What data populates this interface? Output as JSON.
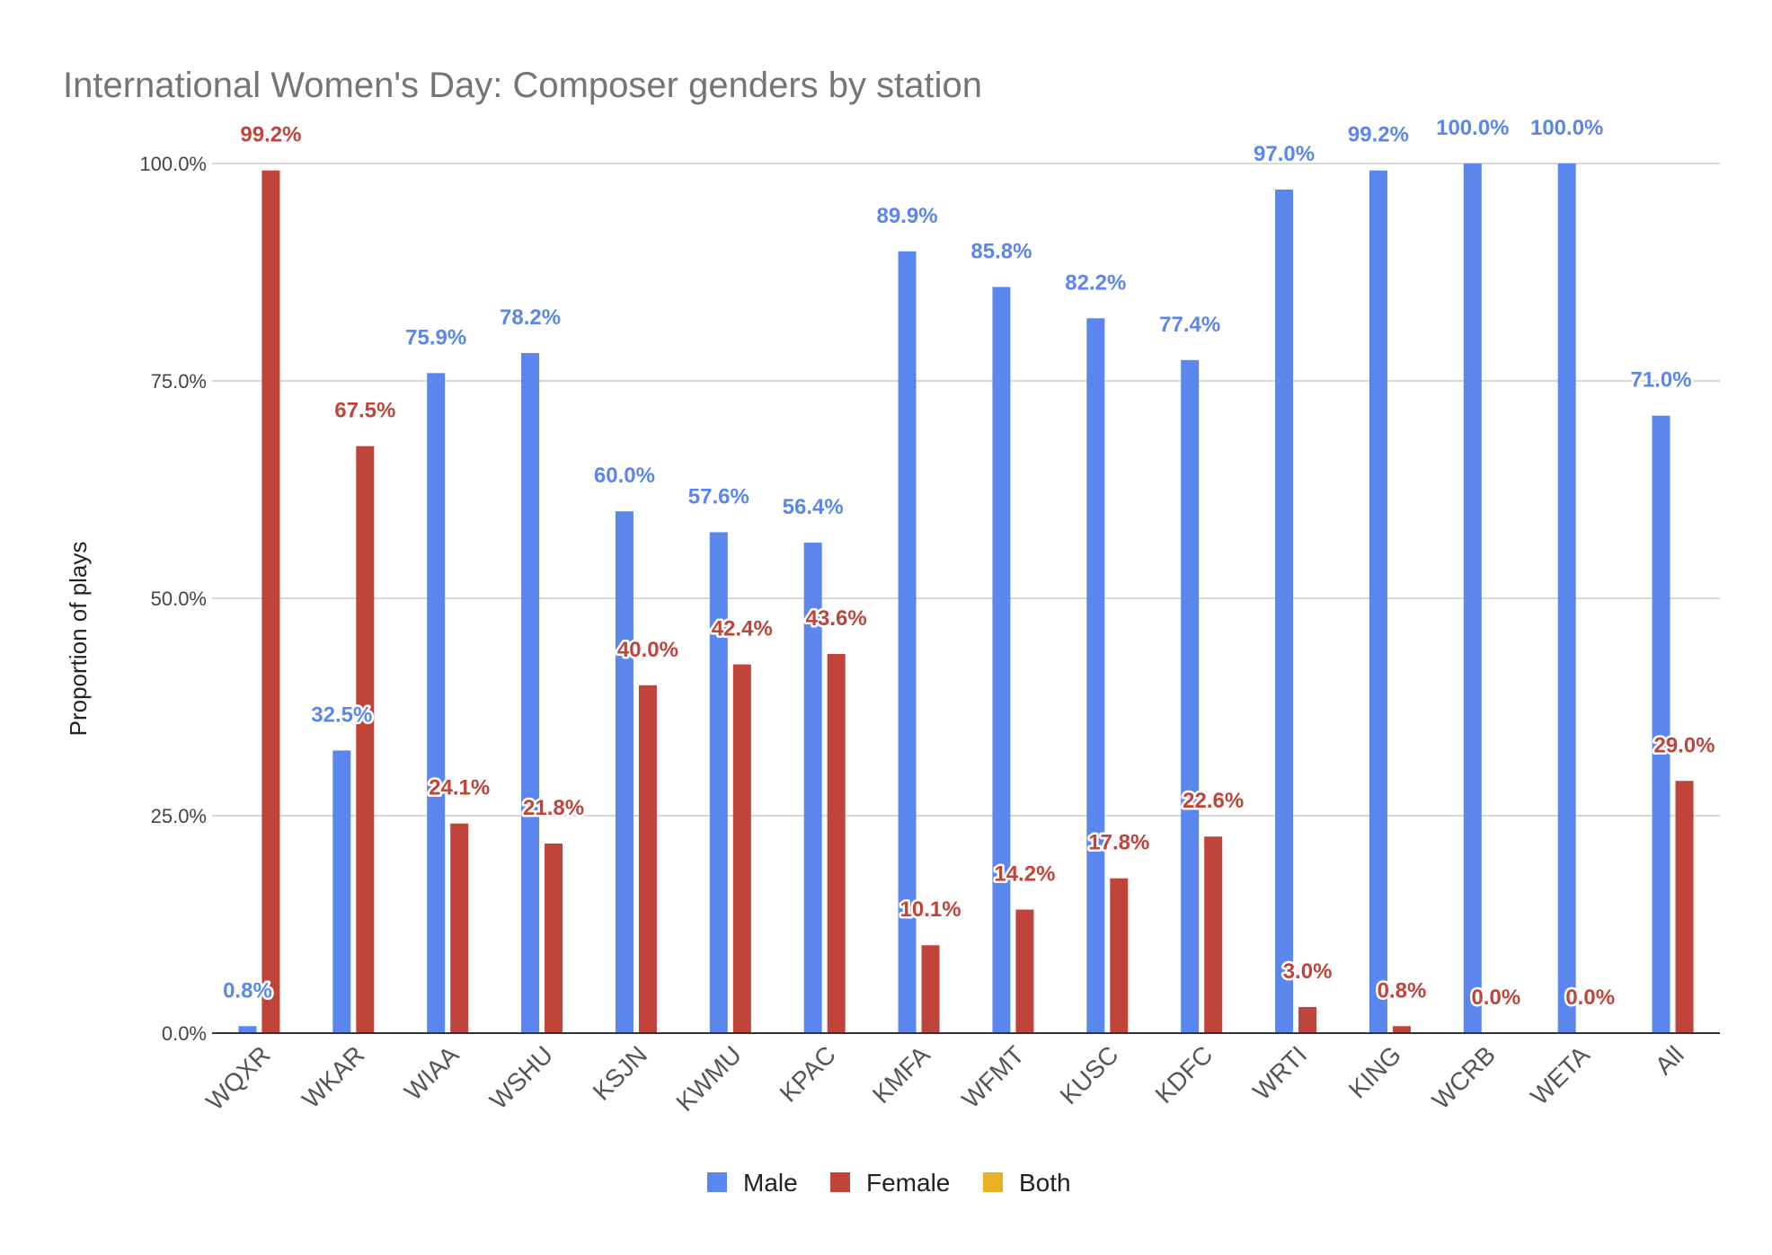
{
  "chart_data": {
    "type": "bar",
    "title": "International Women's Day: Composer genders by station",
    "ylabel": "Proportion of plays",
    "xlabel": "",
    "ylim": [
      0,
      100
    ],
    "yticks": [
      "0.0%",
      "25.0%",
      "50.0%",
      "75.0%",
      "100.0%"
    ],
    "grid": true,
    "legend_position": "bottom",
    "categories": [
      "WQXR",
      "WKAR",
      "WIAA",
      "WSHU",
      "KSJN",
      "KWMU",
      "KPAC",
      "KMFA",
      "WFMT",
      "KUSC",
      "KDFC",
      "WRTI",
      "KING",
      "WCRB",
      "WETA",
      "All"
    ],
    "series": [
      {
        "name": "Male",
        "color": "#5b86ee",
        "values": [
          0.8,
          32.5,
          75.9,
          78.2,
          60.0,
          57.6,
          56.4,
          89.9,
          85.8,
          82.2,
          77.4,
          97.0,
          99.2,
          100.0,
          100.0,
          71.0
        ],
        "labels": [
          "0.8%",
          "32.5%",
          "75.9%",
          "78.2%",
          "60.0%",
          "57.6%",
          "56.4%",
          "89.9%",
          "85.8%",
          "82.2%",
          "77.4%",
          "97.0%",
          "99.2%",
          "100.0%",
          "100.0%",
          "71.0%"
        ]
      },
      {
        "name": "Female",
        "color": "#c0443a",
        "values": [
          99.2,
          67.5,
          24.1,
          21.8,
          40.0,
          42.4,
          43.6,
          10.1,
          14.2,
          17.8,
          22.6,
          3.0,
          0.8,
          0.0,
          0.0,
          29.0
        ],
        "labels": [
          "99.2%",
          "67.5%",
          "24.1%",
          "21.8%",
          "40.0%",
          "42.4%",
          "43.6%",
          "10.1%",
          "14.2%",
          "17.8%",
          "22.6%",
          "3.0%",
          "0.8%",
          "0.0%",
          "0.0%",
          "29.0%"
        ]
      },
      {
        "name": "Both",
        "color": "#e8b023",
        "values": [
          0,
          0,
          0,
          0,
          0,
          0,
          0,
          0,
          0,
          0,
          0,
          0,
          0,
          0,
          0,
          0
        ]
      }
    ]
  }
}
